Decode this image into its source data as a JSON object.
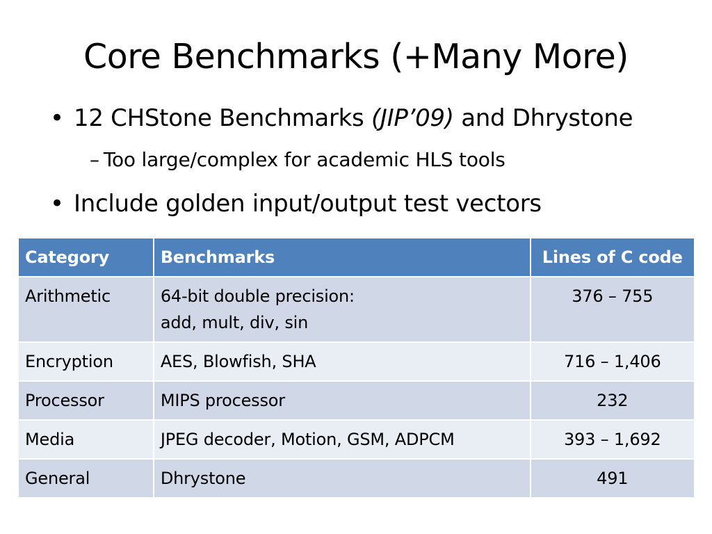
{
  "slide": {
    "title": "Core Benchmarks (+Many More)",
    "bullets": [
      {
        "marker": "•",
        "text_before": "12 CHStone Benchmarks ",
        "italic": "(JIP’09)",
        "text_after": " and Dhrystone"
      },
      {
        "marker": "–",
        "text": "Too large/complex for academic HLS tools"
      },
      {
        "marker": "•",
        "text": "Include golden input/output test vectors"
      }
    ]
  },
  "table": {
    "headers": [
      "Category",
      "Benchmarks",
      "Lines of C code"
    ],
    "rows": [
      {
        "category": "Arithmetic",
        "benchmarks_line1": "64-bit double precision:",
        "benchmarks_line2": "add, mult, div, sin",
        "lines": "376 – 755"
      },
      {
        "category": "Encryption",
        "benchmarks_line1": "AES, Blowfish, SHA",
        "lines": "716 – 1,406"
      },
      {
        "category": "Processor",
        "benchmarks_line1": "MIPS processor",
        "lines": "232"
      },
      {
        "category": "Media",
        "benchmarks_line1": "JPEG decoder, Motion, GSM, ADPCM",
        "lines": "393 – 1,692"
      },
      {
        "category": "General",
        "benchmarks_line1": "Dhrystone",
        "lines": "491"
      }
    ]
  },
  "colors": {
    "header_bg": "#4f81bd",
    "row_odd_bg": "#d0d8e8",
    "row_even_bg": "#e9edf4",
    "text": "#000000"
  }
}
